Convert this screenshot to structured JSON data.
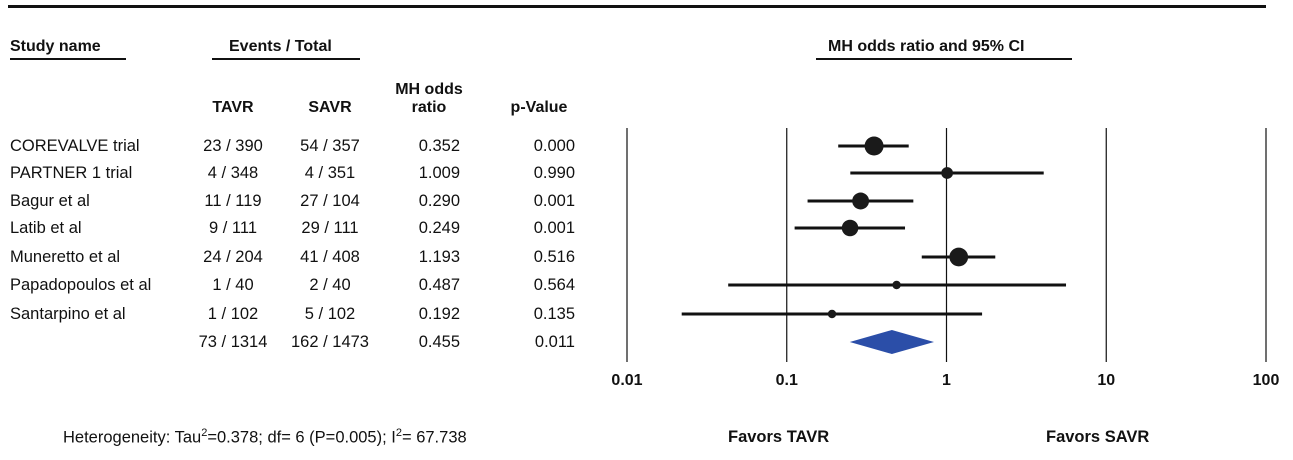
{
  "headers": {
    "study_name": "Study name",
    "events_total": "Events / Total",
    "ci_title": "MH odds ratio and 95% CI",
    "tavr": "TAVR",
    "savr": "SAVR",
    "or_line1": "MH odds",
    "or_line2": "ratio",
    "p_value": "p-Value"
  },
  "summary": {
    "events_tavr": "73 / 1314",
    "events_savr": "162 / 1473",
    "odds_ratio": "0.455",
    "p_value": "0.011"
  },
  "heterogeneity": {
    "prefix": "Heterogeneity: Tau",
    "sup1": "2",
    "mid": "=0.378; df= 6 (P=0.005); I",
    "sup2": "2",
    "suffix": "= 67.738"
  },
  "favors": {
    "left": "Favors TAVR",
    "right": "Favors SAVR"
  },
  "colors": {
    "diamond": "#2b4ea8",
    "marker": "#1a1a1a",
    "lines": "#111111"
  },
  "chart_data": {
    "type": "forest",
    "title": "MH odds ratio and 95% CI",
    "xscale": "log",
    "xlim": [
      0.01,
      100
    ],
    "ticks": [
      {
        "value": 0.01,
        "label": "0.01"
      },
      {
        "value": 0.1,
        "label": "0.1"
      },
      {
        "value": 1,
        "label": "1"
      },
      {
        "value": 10,
        "label": "10"
      },
      {
        "value": 100,
        "label": "100"
      }
    ],
    "grid": true,
    "studies": [
      {
        "name": "COREVALVE trial",
        "tavr": "23 / 390",
        "savr": "54 / 357",
        "or_text": "0.352",
        "p_text": "0.000",
        "or": 0.352,
        "ci_low": 0.21,
        "ci_high": 0.58,
        "weight": 5.0
      },
      {
        "name": "PARTNER 1 trial",
        "tavr": "4 / 348",
        "savr": "4 / 351",
        "or_text": "1.009",
        "p_text": "0.990",
        "or": 1.009,
        "ci_low": 0.25,
        "ci_high": 4.06,
        "weight": 2.6
      },
      {
        "name": "Bagur et al",
        "tavr": "11 / 119",
        "savr": "27 / 104",
        "or_text": "0.290",
        "p_text": "0.001",
        "or": 0.29,
        "ci_low": 0.135,
        "ci_high": 0.62,
        "weight": 4.3
      },
      {
        "name": "Latib et al",
        "tavr": "9 / 111",
        "savr": "29 / 111",
        "or_text": "0.249",
        "p_text": "0.001",
        "or": 0.249,
        "ci_low": 0.112,
        "ci_high": 0.55,
        "weight": 4.2
      },
      {
        "name": "Muneretto et al",
        "tavr": "24 / 204",
        "savr": "41 / 408",
        "or_text": "1.193",
        "p_text": "0.516",
        "or": 1.193,
        "ci_low": 0.7,
        "ci_high": 2.02,
        "weight": 4.9
      },
      {
        "name": "Papadopoulos et al",
        "tavr": "1 / 40",
        "savr": "2 / 40",
        "or_text": "0.487",
        "p_text": "0.564",
        "or": 0.487,
        "ci_low": 0.043,
        "ci_high": 5.6,
        "weight": 1.5
      },
      {
        "name": "Santarpino et al",
        "tavr": "1 / 102",
        "savr": "5 / 102",
        "or_text": "0.192",
        "p_text": "0.135",
        "or": 0.192,
        "ci_low": 0.022,
        "ci_high": 1.67,
        "weight": 1.5
      }
    ],
    "summary": {
      "or": 0.455,
      "ci_low": 0.248,
      "ci_high": 0.835
    }
  }
}
